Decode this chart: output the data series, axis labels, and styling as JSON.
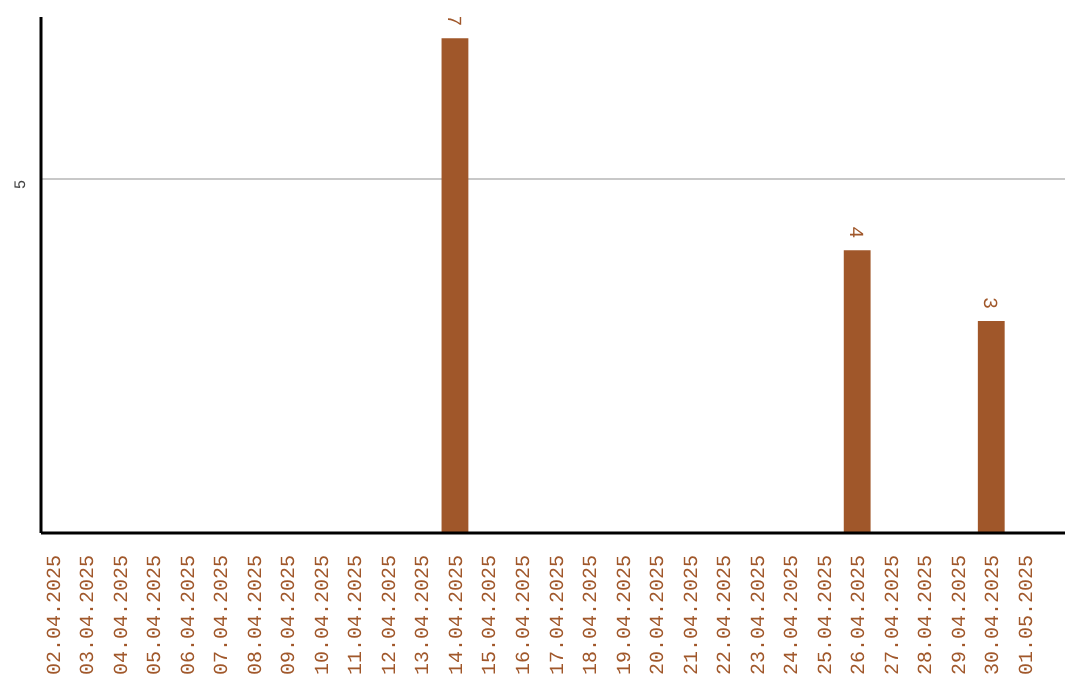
{
  "chart_data": {
    "type": "bar",
    "categories": [
      "02.04.2025",
      "03.04.2025",
      "04.04.2025",
      "05.04.2025",
      "06.04.2025",
      "07.04.2025",
      "08.04.2025",
      "09.04.2025",
      "10.04.2025",
      "11.04.2025",
      "12.04.2025",
      "13.04.2025",
      "14.04.2025",
      "15.04.2025",
      "16.04.2025",
      "17.04.2025",
      "18.04.2025",
      "19.04.2025",
      "20.04.2025",
      "21.04.2025",
      "22.04.2025",
      "23.04.2025",
      "24.04.2025",
      "25.04.2025",
      "26.04.2025",
      "27.04.2025",
      "28.04.2025",
      "29.04.2025",
      "30.04.2025",
      "01.05.2025"
    ],
    "values": [
      null,
      null,
      null,
      null,
      null,
      null,
      null,
      null,
      null,
      null,
      null,
      null,
      7,
      null,
      null,
      null,
      null,
      null,
      null,
      null,
      null,
      null,
      null,
      null,
      4,
      null,
      null,
      null,
      3,
      null
    ],
    "data_labels": true,
    "color": "#a0572a",
    "ylim": [
      0,
      7.3
    ],
    "yticks": [
      5
    ],
    "grid": "y"
  }
}
